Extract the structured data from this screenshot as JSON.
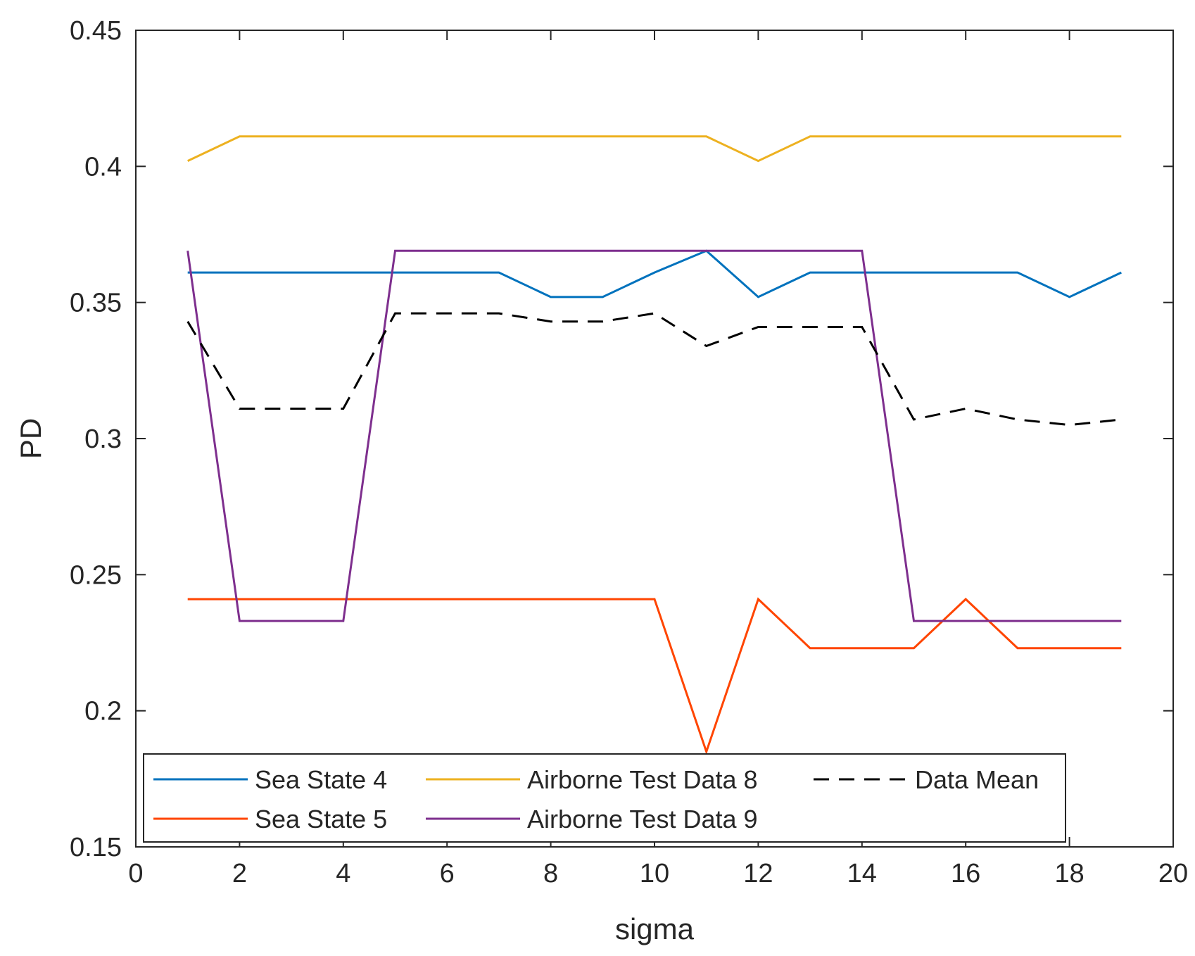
{
  "chart_data": {
    "type": "line",
    "title": "",
    "xlabel": "sigma",
    "ylabel": "PD",
    "xlim": [
      0,
      20
    ],
    "ylim": [
      0.15,
      0.45
    ],
    "xticks": [
      0,
      2,
      4,
      6,
      8,
      10,
      12,
      14,
      16,
      18,
      20
    ],
    "xtick_labels": [
      "0",
      "2",
      "4",
      "6",
      "8",
      "10",
      "12",
      "14",
      "16",
      "18",
      "20"
    ],
    "yticks": [
      0.15,
      0.2,
      0.25,
      0.3,
      0.35,
      0.4,
      0.45
    ],
    "ytick_labels": [
      "0.15",
      "0.2",
      "0.25",
      "0.3",
      "0.35",
      "0.4",
      "0.45"
    ],
    "grid": false,
    "legend_position": "bottom-left",
    "x": [
      1,
      2,
      3,
      4,
      5,
      6,
      7,
      8,
      9,
      10,
      11,
      12,
      13,
      14,
      15,
      16,
      17,
      18,
      19
    ],
    "series": [
      {
        "name": "Sea State 4",
        "color": "#0072BD",
        "dash": "solid",
        "values": [
          0.361,
          0.361,
          0.361,
          0.361,
          0.361,
          0.361,
          0.361,
          0.352,
          0.352,
          0.361,
          0.369,
          0.352,
          0.361,
          0.361,
          0.361,
          0.361,
          0.361,
          0.352,
          0.361
        ]
      },
      {
        "name": "Sea State 5",
        "color": "#FF4500",
        "dash": "solid",
        "values": [
          0.241,
          0.241,
          0.241,
          0.241,
          0.241,
          0.241,
          0.241,
          0.241,
          0.241,
          0.241,
          0.185,
          0.241,
          0.223,
          0.223,
          0.223,
          0.241,
          0.223,
          0.223,
          0.223
        ]
      },
      {
        "name": "Airborne Test Data 8",
        "color": "#EDB120",
        "dash": "solid",
        "values": [
          0.402,
          0.411,
          0.411,
          0.411,
          0.411,
          0.411,
          0.411,
          0.411,
          0.411,
          0.411,
          0.411,
          0.402,
          0.411,
          0.411,
          0.411,
          0.411,
          0.411,
          0.411,
          0.411
        ]
      },
      {
        "name": "Airborne Test Data 9",
        "color": "#7E2F8E",
        "dash": "solid",
        "values": [
          0.369,
          0.233,
          0.233,
          0.233,
          0.369,
          0.369,
          0.369,
          0.369,
          0.369,
          0.369,
          0.369,
          0.369,
          0.369,
          0.369,
          0.233,
          0.233,
          0.233,
          0.233,
          0.233
        ]
      },
      {
        "name": "Data Mean",
        "color": "#000000",
        "dash": "dashed",
        "values": [
          0.343,
          0.311,
          0.311,
          0.311,
          0.346,
          0.346,
          0.346,
          0.343,
          0.343,
          0.346,
          0.334,
          0.341,
          0.341,
          0.341,
          0.307,
          0.311,
          0.307,
          0.305,
          0.307
        ]
      }
    ]
  }
}
